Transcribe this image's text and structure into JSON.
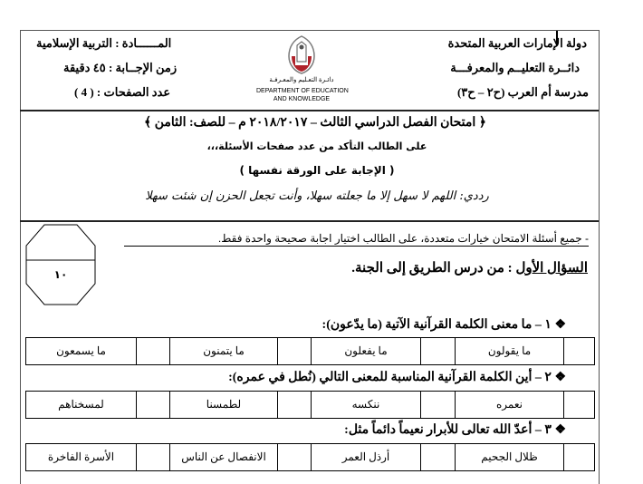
{
  "header": {
    "right": [
      "دولة الإمارات العربية المتحدة",
      "دائــرة التعليــم والمعرفـــة",
      "مدرسة أم العرب (ح٢ – ح٣)"
    ],
    "left": [
      "المــــــادة : التربية الإسلامية",
      "زمن الإجــابة : ٤٥ دقيقة",
      "عدد الصفحات :  (  4  )"
    ],
    "logo": {
      "arabic": "دائـرة التعـليم والمعـرفـة",
      "english_1": "DEPARTMENT OF EDUCATION",
      "english_2": "AND KNOWLEDGE",
      "colors": {
        "red": "#b0222a",
        "gray": "#7a7a7a"
      }
    }
  },
  "exam": {
    "title": "﴿ امتحان الفصل الدراسي الثالث – ٢٠١٨/٢٠١٧ م – للصف: الثامن ﴾",
    "note": "على الطالب التأكد من عدد صفحات الأسئلة،،،",
    "answer_note": "( الإجابة على الورقة نفسها )",
    "prayer": "رددي: اللهم لا سهل إلا ما جعلته سهلا، وأنت تجعل الحزن إن شئت سهلا"
  },
  "instructions": "- جميع أسئلة الامتحان خيارات متعددة، على الطالب اختيار اجابة صحيحة واحدة فقط.",
  "section": {
    "label": "السؤال الأول",
    "title": ": من درس الطريق إلى الجنة."
  },
  "score_box": {
    "total": "١٠"
  },
  "questions": [
    {
      "text": "❖ ١ – ما معنى الكلمة القرآنية الآتية (ما يدّعون):",
      "options": [
        "ما يقولون",
        "ما يفعلون",
        "ما يتمنون",
        "ما يسمعون"
      ]
    },
    {
      "text": "❖ ٢ – أين الكلمة القرآنية المناسبة للمعنى التالي (نُطل في عمره):",
      "options": [
        "نعمره",
        "ننكسه",
        "لطمسنا",
        "لمسخناهم"
      ]
    },
    {
      "text": "❖ ٣ – أعدّ الله تعالى للأبرار نعيماً دائماً مثل:",
      "options": [
        "ظلال الجحيم",
        "أرذل العمر",
        "الانفصال عن الناس",
        "الأسرة الفاخرة"
      ]
    }
  ]
}
